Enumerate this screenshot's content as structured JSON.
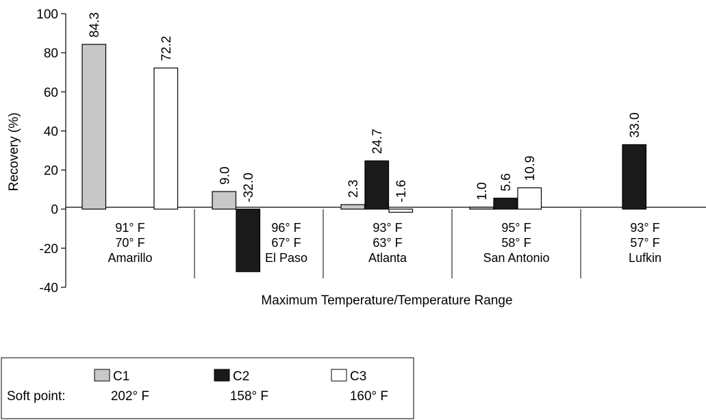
{
  "chart_data": {
    "type": "bar",
    "ylabel": "Recovery (%)",
    "xlabel": "Maximum Temperature/Temperature Range",
    "ylim": [
      -40,
      100
    ],
    "yticks": [
      "-40",
      "-20",
      "0",
      "20",
      "40",
      "60",
      "80",
      "100"
    ],
    "grid": false,
    "categories": [
      {
        "max_temp": "91° F",
        "range": "70° F",
        "city": "Amarillo"
      },
      {
        "max_temp": "96° F",
        "range": "67° F",
        "city": "El Paso"
      },
      {
        "max_temp": "93° F",
        "range": "63° F",
        "city": "Atlanta"
      },
      {
        "max_temp": "95° F",
        "range": "58° F",
        "city": "San Antonio"
      },
      {
        "max_temp": "93° F",
        "range": "57° F",
        "city": "Lufkin"
      }
    ],
    "series": [
      {
        "name": "C1",
        "color": "#c8c8c8",
        "values": [
          84.3,
          9.0,
          2.3,
          1.0,
          null
        ],
        "labels": [
          "84.3",
          "9.0",
          "2.3",
          "1.0",
          null
        ]
      },
      {
        "name": "C2",
        "color": "#1a1a1a",
        "values": [
          null,
          -32.0,
          24.7,
          5.6,
          33.0
        ],
        "labels": [
          null,
          "-32.0",
          "24.7",
          "5.6",
          "33.0"
        ]
      },
      {
        "name": "C3",
        "color": "#ffffff",
        "values": [
          72.2,
          null,
          -1.6,
          10.9,
          null
        ],
        "labels": [
          "72.2",
          null,
          "-1.6",
          "10.9",
          null
        ]
      }
    ],
    "legend": {
      "placement": "bottom-left",
      "row_label": "Soft point:",
      "entries": [
        {
          "name": "C1",
          "soft_point": "202° F"
        },
        {
          "name": "C2",
          "soft_point": "158° F"
        },
        {
          "name": "C3",
          "soft_point": "160° F"
        }
      ]
    }
  }
}
